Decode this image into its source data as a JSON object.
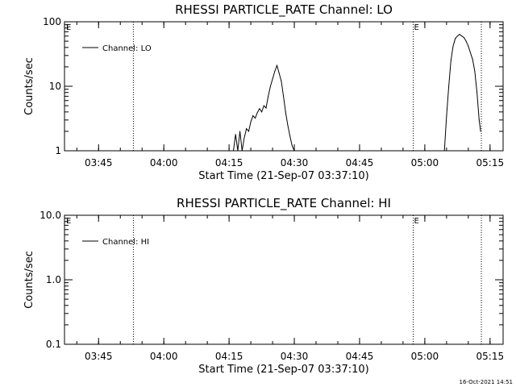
{
  "chart_data": [
    {
      "type": "line",
      "title": "RHESSI PARTICLE_RATE Channel: LO",
      "xlabel": "Start Time (21-Sep-07 03:37:10)",
      "ylabel": "Counts/sec",
      "y_scale": "log",
      "ylim": [
        1,
        100
      ],
      "xlim": [
        "03:37:10",
        "05:18:00"
      ],
      "y_ticks": [
        "1",
        "10",
        "100"
      ],
      "x_ticks": [
        "03:45",
        "04:00",
        "04:15",
        "04:30",
        "04:45",
        "05:00",
        "05:15"
      ],
      "legend": {
        "placement": "top-left",
        "entries": [
          "Channel: LO"
        ]
      },
      "markers": [
        {
          "time": "03:53:00",
          "label": ""
        },
        {
          "time": "04:57:20",
          "label": "E"
        },
        {
          "time": "05:13:00",
          "label": ""
        }
      ],
      "start_marker_label": "E",
      "grid": false,
      "series": [
        {
          "name": "Channel: LO",
          "x": [
            "04:16:00",
            "04:16:30",
            "04:17:00",
            "04:17:30",
            "04:18:00",
            "04:18:30",
            "04:19:00",
            "04:19:30",
            "04:20:00",
            "04:20:30",
            "04:21:00",
            "04:21:30",
            "04:22:00",
            "04:22:30",
            "04:23:00",
            "04:23:30",
            "04:24:00",
            "04:24:30",
            "04:25:00",
            "04:25:30",
            "04:26:00",
            "04:26:30",
            "04:27:00",
            "04:27:30",
            "04:28:00",
            "04:28:30",
            "04:29:00",
            "04:29:30",
            "04:30:00"
          ],
          "y": [
            1,
            1.8,
            1,
            2.0,
            1,
            1.6,
            2.2,
            2.0,
            2.8,
            3.5,
            3.2,
            3.9,
            4.5,
            4.0,
            5.0,
            4.6,
            7.0,
            10,
            13,
            17,
            21,
            16,
            12,
            7,
            4,
            2.5,
            1.7,
            1.2,
            1
          ],
          "color": "#000000"
        },
        {
          "name": "Channel: LO",
          "x": [
            "05:04:30",
            "05:05:00",
            "05:05:30",
            "05:06:00",
            "05:06:30",
            "05:07:00",
            "05:07:30",
            "05:08:00",
            "05:08:30",
            "05:09:00",
            "05:09:30",
            "05:10:00",
            "05:10:30",
            "05:11:00",
            "05:11:30",
            "05:12:00",
            "05:12:30",
            "05:12:50"
          ],
          "y": [
            1,
            3.5,
            10,
            25,
            42,
            55,
            60,
            64,
            60,
            57,
            50,
            42,
            33,
            26,
            17,
            8,
            3,
            2
          ],
          "color": "#000000"
        }
      ]
    },
    {
      "type": "line",
      "title": "RHESSI PARTICLE_RATE Channel: HI",
      "xlabel": "Start Time (21-Sep-07 03:37:10)",
      "ylabel": "Counts/sec",
      "y_scale": "log",
      "ylim": [
        0.1,
        10
      ],
      "xlim": [
        "03:37:10",
        "05:18:00"
      ],
      "y_ticks": [
        "0.1",
        "1.0",
        "10.0"
      ],
      "x_ticks": [
        "03:45",
        "04:00",
        "04:15",
        "04:30",
        "04:45",
        "05:00",
        "05:15"
      ],
      "legend": {
        "placement": "top-left",
        "entries": [
          "Channel: HI"
        ]
      },
      "markers": [
        {
          "time": "03:53:00",
          "label": ""
        },
        {
          "time": "04:57:20",
          "label": "E"
        },
        {
          "time": "05:13:00",
          "label": ""
        }
      ],
      "start_marker_label": "E",
      "grid": false,
      "series": [
        {
          "name": "Channel: HI",
          "x": [],
          "y": [],
          "color": "#000000"
        }
      ]
    }
  ],
  "footer": {
    "timestamp": "16-Oct-2021 14:51"
  }
}
